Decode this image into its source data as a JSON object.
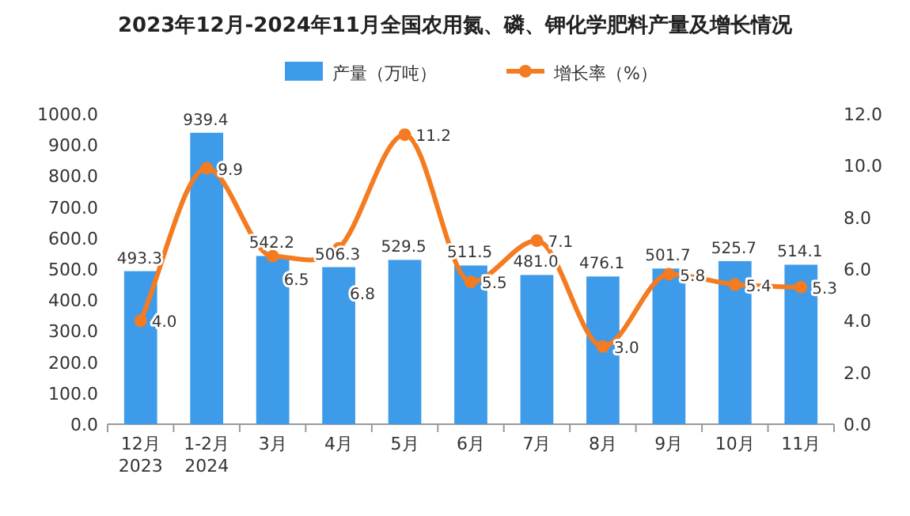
{
  "chart_data": {
    "type": "bar",
    "title": "2023年12月-2024年11月全国农用氮、磷、钾化学肥料产量及增长情况",
    "categories": [
      "12月\n2023",
      "1-2月\n2024",
      "3月",
      "4月",
      "5月",
      "6月",
      "7月",
      "8月",
      "9月",
      "10月",
      "11月"
    ],
    "series": [
      {
        "name": "产量（万吨）",
        "color": "#3d9be9",
        "values": [
          493.3,
          939.4,
          542.2,
          506.3,
          529.5,
          511.5,
          481.0,
          476.1,
          501.7,
          525.7,
          514.1
        ],
        "value_labels": [
          "493.3",
          "939.4",
          "542.2",
          "506.3",
          "529.5",
          "511.5",
          "481.0",
          "476.1",
          "501.7",
          "525.7",
          "514.1"
        ]
      },
      {
        "name": "增长率（%）",
        "type": "line",
        "axis": "y2",
        "color": "#f47b20",
        "marker": "circle",
        "values": [
          4.0,
          9.9,
          6.5,
          6.8,
          11.2,
          5.5,
          7.1,
          3.0,
          5.8,
          5.4,
          5.3
        ],
        "value_labels": [
          "4.0",
          "9.9",
          "6.5",
          "6.8",
          "11.2",
          "5.5",
          "7.1",
          "3.0",
          "5.8",
          "5.4",
          "5.3"
        ]
      }
    ],
    "ylim": [
      0,
      1000
    ],
    "yticks": [
      {
        "value": 0,
        "label": "0.0"
      },
      {
        "value": 100,
        "label": "100.0"
      },
      {
        "value": 200,
        "label": "200.0"
      },
      {
        "value": 300,
        "label": "300.0"
      },
      {
        "value": 400,
        "label": "400.0"
      },
      {
        "value": 500,
        "label": "500.0"
      },
      {
        "value": 600,
        "label": "600.0"
      },
      {
        "value": 700,
        "label": "700.0"
      },
      {
        "value": 800,
        "label": "800.0"
      },
      {
        "value": 900,
        "label": "900.0"
      },
      {
        "value": 1000,
        "label": "1000.0"
      }
    ],
    "y2lim": [
      0,
      12
    ],
    "y2ticks": [
      {
        "value": 0,
        "label": "0.0"
      },
      {
        "value": 2,
        "label": "2.0"
      },
      {
        "value": 4,
        "label": "4.0"
      },
      {
        "value": 6,
        "label": "6.0"
      },
      {
        "value": 8,
        "label": "8.0"
      },
      {
        "value": 10,
        "label": "10.0"
      },
      {
        "value": 12,
        "label": "12.0"
      }
    ],
    "legend": "top",
    "grid": false
  }
}
